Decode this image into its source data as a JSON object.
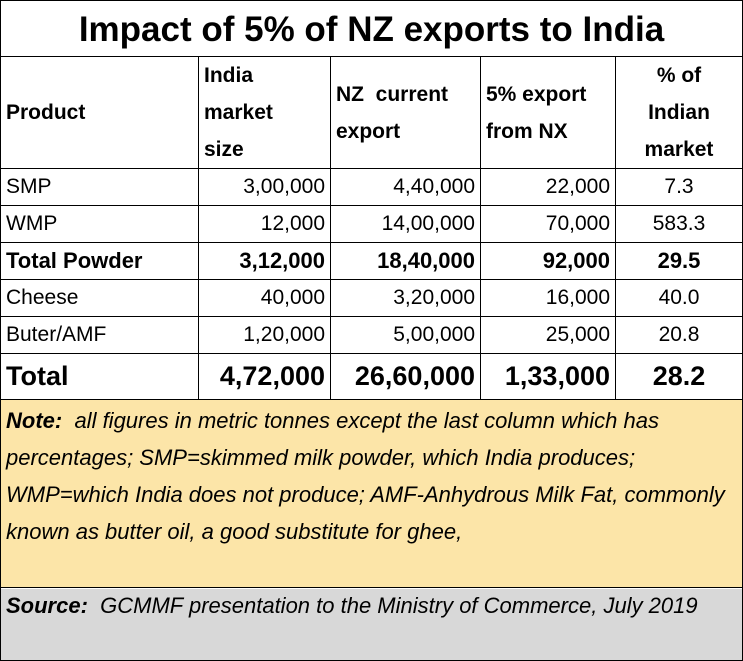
{
  "title": "Impact of 5% of NZ exports to India",
  "headers": [
    "Product",
    "India\nmarket\nsize",
    "NZ  current\nexport",
    "5% export\nfrom NX",
    "% of\nIndian\nmarket"
  ],
  "rows": [
    {
      "product": "SMP",
      "india_market_size": "3,00,000",
      "nz_current_export": "4,40,000",
      "five_pct_export": "22,000",
      "pct_indian_market": "7.3"
    },
    {
      "product": "WMP",
      "india_market_size": "12,000",
      "nz_current_export": "14,00,000",
      "five_pct_export": "70,000",
      "pct_indian_market": "583.3"
    },
    {
      "product": "Total Powder",
      "india_market_size": "3,12,000",
      "nz_current_export": "18,40,000",
      "five_pct_export": "92,000",
      "pct_indian_market": "29.5"
    },
    {
      "product": "Cheese",
      "india_market_size": "40,000",
      "nz_current_export": "3,20,000",
      "five_pct_export": "16,000",
      "pct_indian_market": "40.0"
    },
    {
      "product": "Buter/AMF",
      "india_market_size": "1,20,000",
      "nz_current_export": "5,00,000",
      "five_pct_export": "25,000",
      "pct_indian_market": "20.8"
    },
    {
      "product": "Total",
      "india_market_size": "4,72,000",
      "nz_current_export": "26,60,000",
      "five_pct_export": "1,33,000",
      "pct_indian_market": "28.2"
    }
  ],
  "note": {
    "label": "Note:",
    "text": "  all figures in metric tonnes except the last column which has percentages; SMP=skimmed milk powder, which India produces; WMP=which India does not produce; AMF-Anhydrous Milk Fat, commonly known as butter oil, a good substitute for ghee,"
  },
  "source": {
    "label": "Source:",
    "text": "  GCMMF presentation to the Ministry of Commerce, July 2019"
  },
  "colors": {
    "note_background": "#fce5a8",
    "source_background": "#d8d8d8",
    "border": "#000000"
  }
}
